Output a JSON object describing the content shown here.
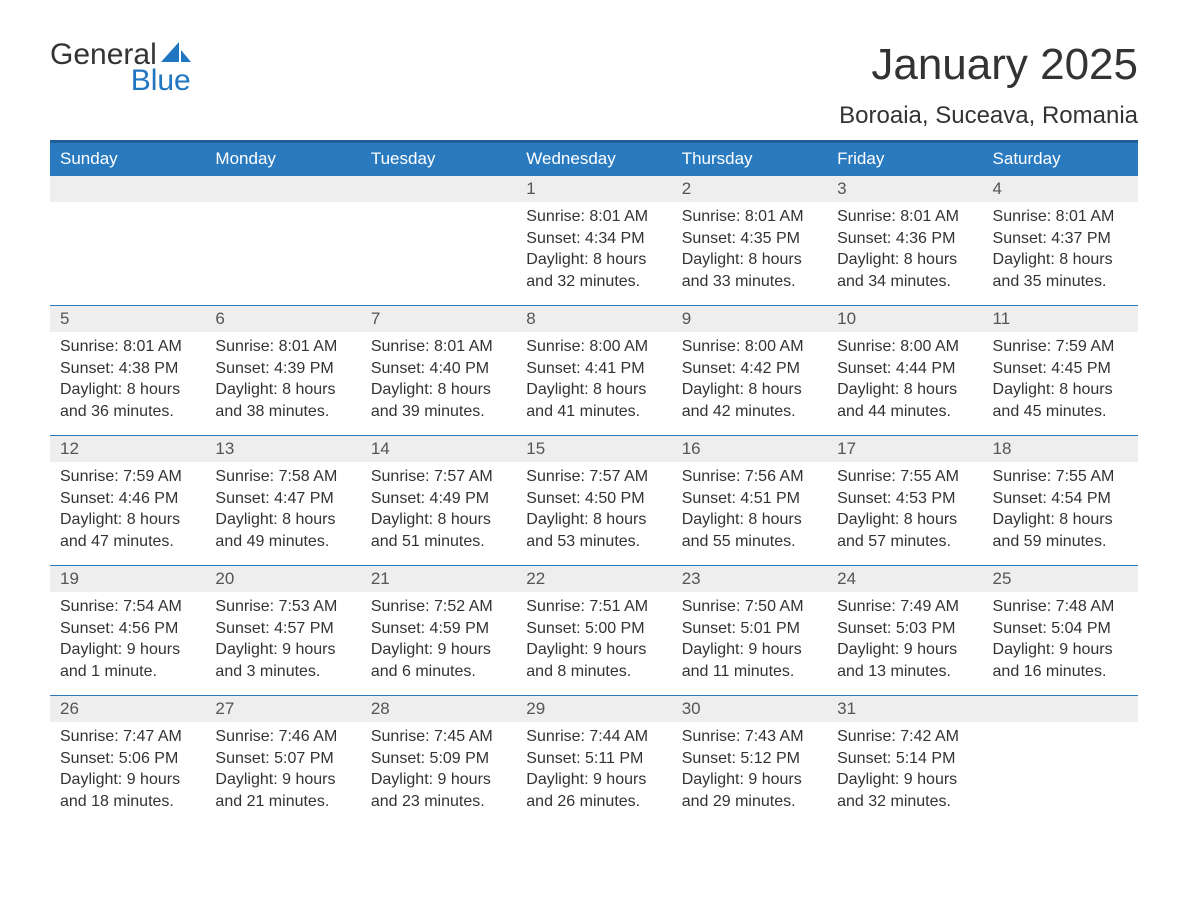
{
  "logo": {
    "text_top": "General",
    "text_bottom": "Blue",
    "text_top_color": "#333333",
    "text_bottom_color": "#2176c1",
    "icon_color": "#2176c1"
  },
  "title": "January 2025",
  "location": "Boroaia, Suceava, Romania",
  "colors": {
    "header_bg": "#2a7ac0",
    "header_border_top": "#1f5f99",
    "header_text": "#ffffff",
    "daynum_bg": "#eeeeee",
    "daynum_border_top": "#2a7ac0",
    "daynum_text": "#555555",
    "body_text": "#333333",
    "page_bg": "#ffffff"
  },
  "typography": {
    "title_fontsize": 44,
    "location_fontsize": 24,
    "dayheader_fontsize": 17,
    "daynum_fontsize": 17,
    "content_fontsize": 16,
    "logo_fontsize": 30
  },
  "calendar": {
    "type": "table",
    "day_headers": [
      "Sunday",
      "Monday",
      "Tuesday",
      "Wednesday",
      "Thursday",
      "Friday",
      "Saturday"
    ],
    "weeks": [
      [
        null,
        null,
        null,
        {
          "n": "1",
          "sunrise": "Sunrise: 8:01 AM",
          "sunset": "Sunset: 4:34 PM",
          "daylight": "Daylight: 8 hours and 32 minutes."
        },
        {
          "n": "2",
          "sunrise": "Sunrise: 8:01 AM",
          "sunset": "Sunset: 4:35 PM",
          "daylight": "Daylight: 8 hours and 33 minutes."
        },
        {
          "n": "3",
          "sunrise": "Sunrise: 8:01 AM",
          "sunset": "Sunset: 4:36 PM",
          "daylight": "Daylight: 8 hours and 34 minutes."
        },
        {
          "n": "4",
          "sunrise": "Sunrise: 8:01 AM",
          "sunset": "Sunset: 4:37 PM",
          "daylight": "Daylight: 8 hours and 35 minutes."
        }
      ],
      [
        {
          "n": "5",
          "sunrise": "Sunrise: 8:01 AM",
          "sunset": "Sunset: 4:38 PM",
          "daylight": "Daylight: 8 hours and 36 minutes."
        },
        {
          "n": "6",
          "sunrise": "Sunrise: 8:01 AM",
          "sunset": "Sunset: 4:39 PM",
          "daylight": "Daylight: 8 hours and 38 minutes."
        },
        {
          "n": "7",
          "sunrise": "Sunrise: 8:01 AM",
          "sunset": "Sunset: 4:40 PM",
          "daylight": "Daylight: 8 hours and 39 minutes."
        },
        {
          "n": "8",
          "sunrise": "Sunrise: 8:00 AM",
          "sunset": "Sunset: 4:41 PM",
          "daylight": "Daylight: 8 hours and 41 minutes."
        },
        {
          "n": "9",
          "sunrise": "Sunrise: 8:00 AM",
          "sunset": "Sunset: 4:42 PM",
          "daylight": "Daylight: 8 hours and 42 minutes."
        },
        {
          "n": "10",
          "sunrise": "Sunrise: 8:00 AM",
          "sunset": "Sunset: 4:44 PM",
          "daylight": "Daylight: 8 hours and 44 minutes."
        },
        {
          "n": "11",
          "sunrise": "Sunrise: 7:59 AM",
          "sunset": "Sunset: 4:45 PM",
          "daylight": "Daylight: 8 hours and 45 minutes."
        }
      ],
      [
        {
          "n": "12",
          "sunrise": "Sunrise: 7:59 AM",
          "sunset": "Sunset: 4:46 PM",
          "daylight": "Daylight: 8 hours and 47 minutes."
        },
        {
          "n": "13",
          "sunrise": "Sunrise: 7:58 AM",
          "sunset": "Sunset: 4:47 PM",
          "daylight": "Daylight: 8 hours and 49 minutes."
        },
        {
          "n": "14",
          "sunrise": "Sunrise: 7:57 AM",
          "sunset": "Sunset: 4:49 PM",
          "daylight": "Daylight: 8 hours and 51 minutes."
        },
        {
          "n": "15",
          "sunrise": "Sunrise: 7:57 AM",
          "sunset": "Sunset: 4:50 PM",
          "daylight": "Daylight: 8 hours and 53 minutes."
        },
        {
          "n": "16",
          "sunrise": "Sunrise: 7:56 AM",
          "sunset": "Sunset: 4:51 PM",
          "daylight": "Daylight: 8 hours and 55 minutes."
        },
        {
          "n": "17",
          "sunrise": "Sunrise: 7:55 AM",
          "sunset": "Sunset: 4:53 PM",
          "daylight": "Daylight: 8 hours and 57 minutes."
        },
        {
          "n": "18",
          "sunrise": "Sunrise: 7:55 AM",
          "sunset": "Sunset: 4:54 PM",
          "daylight": "Daylight: 8 hours and 59 minutes."
        }
      ],
      [
        {
          "n": "19",
          "sunrise": "Sunrise: 7:54 AM",
          "sunset": "Sunset: 4:56 PM",
          "daylight": "Daylight: 9 hours and 1 minute."
        },
        {
          "n": "20",
          "sunrise": "Sunrise: 7:53 AM",
          "sunset": "Sunset: 4:57 PM",
          "daylight": "Daylight: 9 hours and 3 minutes."
        },
        {
          "n": "21",
          "sunrise": "Sunrise: 7:52 AM",
          "sunset": "Sunset: 4:59 PM",
          "daylight": "Daylight: 9 hours and 6 minutes."
        },
        {
          "n": "22",
          "sunrise": "Sunrise: 7:51 AM",
          "sunset": "Sunset: 5:00 PM",
          "daylight": "Daylight: 9 hours and 8 minutes."
        },
        {
          "n": "23",
          "sunrise": "Sunrise: 7:50 AM",
          "sunset": "Sunset: 5:01 PM",
          "daylight": "Daylight: 9 hours and 11 minutes."
        },
        {
          "n": "24",
          "sunrise": "Sunrise: 7:49 AM",
          "sunset": "Sunset: 5:03 PM",
          "daylight": "Daylight: 9 hours and 13 minutes."
        },
        {
          "n": "25",
          "sunrise": "Sunrise: 7:48 AM",
          "sunset": "Sunset: 5:04 PM",
          "daylight": "Daylight: 9 hours and 16 minutes."
        }
      ],
      [
        {
          "n": "26",
          "sunrise": "Sunrise: 7:47 AM",
          "sunset": "Sunset: 5:06 PM",
          "daylight": "Daylight: 9 hours and 18 minutes."
        },
        {
          "n": "27",
          "sunrise": "Sunrise: 7:46 AM",
          "sunset": "Sunset: 5:07 PM",
          "daylight": "Daylight: 9 hours and 21 minutes."
        },
        {
          "n": "28",
          "sunrise": "Sunrise: 7:45 AM",
          "sunset": "Sunset: 5:09 PM",
          "daylight": "Daylight: 9 hours and 23 minutes."
        },
        {
          "n": "29",
          "sunrise": "Sunrise: 7:44 AM",
          "sunset": "Sunset: 5:11 PM",
          "daylight": "Daylight: 9 hours and 26 minutes."
        },
        {
          "n": "30",
          "sunrise": "Sunrise: 7:43 AM",
          "sunset": "Sunset: 5:12 PM",
          "daylight": "Daylight: 9 hours and 29 minutes."
        },
        {
          "n": "31",
          "sunrise": "Sunrise: 7:42 AM",
          "sunset": "Sunset: 5:14 PM",
          "daylight": "Daylight: 9 hours and 32 minutes."
        },
        null
      ]
    ]
  }
}
